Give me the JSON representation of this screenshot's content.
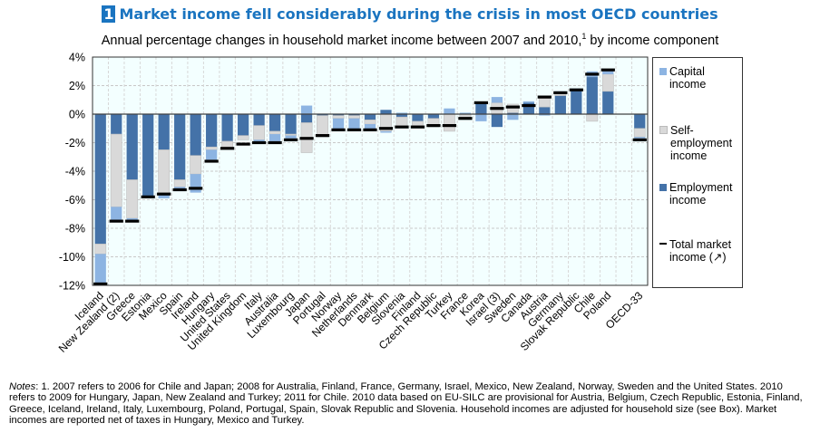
{
  "title": {
    "number": "1",
    "text": "Market income fell considerably during the crisis in most OECD countries"
  },
  "subtitle": {
    "text": "Annual percentage changes in household market income between 2007 and 2010,",
    "footnote_ref": "1",
    "suffix": " by income component"
  },
  "legend": {
    "items": [
      {
        "key": "capital",
        "label": "Capital income",
        "color": "#8db4e2"
      },
      {
        "key": "self",
        "label": "Self-employment income",
        "color": "#d9d9d9"
      },
      {
        "key": "employment",
        "label": "Employment income",
        "color": "#4472a8"
      },
      {
        "key": "total",
        "label": "Total market income (↗)",
        "color": "#000000"
      }
    ]
  },
  "notes": {
    "label": "Notes",
    "text": ": 1. 2007 refers to 2006 for Chile and Japan; 2008 for Australia, Finland, France, Germany, Israel, Mexico, New Zealand, Norway, Sweden and the United States. 2010 refers to 2009 for Hungary, Japan, New Zealand and Turkey; 2011 for Chile. 2010 data based on EU-SILC are provisional for Austria, Belgium, Czech Republic, Estonia, Finland, Greece, Iceland, Ireland, Italy, Luxembourg, Poland, Portugal, Spain, Slovak Republic and Slovenia. Household incomes are adjusted for household size (see Box). Market incomes are reported net of taxes in Hungary, Mexico and Turkey."
  },
  "chart_data": {
    "type": "bar",
    "stacked": true,
    "title": "Market income fell considerably during the crisis in most OECD countries",
    "subtitle": "Annual percentage changes in household market income between 2007 and 2010, by income component",
    "xlabel": "",
    "ylabel": "",
    "ylim": [
      -12,
      4
    ],
    "yticks": [
      4,
      2,
      0,
      -2,
      -4,
      -6,
      -8,
      -10,
      -12
    ],
    "ytick_labels": [
      "4%",
      "2%",
      "0%",
      "-2%",
      "-4%",
      "-6%",
      "-8%",
      "-10%",
      "-12%"
    ],
    "grid": true,
    "legend_position": "right",
    "categories": [
      "Iceland",
      "New Zealand (2)",
      "Greece",
      "Estonia",
      "Mexico",
      "Spain",
      "Ireland",
      "Hungary",
      "United States",
      "United Kingdom",
      "Italy",
      "Australia",
      "Luxembourg",
      "Japan",
      "Portugal",
      "Norway",
      "Netherlands",
      "Denmark",
      "Belgium",
      "Slovenia",
      "Finland",
      "Czech Republic",
      "Turkey",
      "France",
      "Korea",
      "Israel (3)",
      "Sweden",
      "Canada",
      "Austria",
      "Germany",
      "Slovak Republic",
      "Chile",
      "Poland",
      "",
      "OECD-33"
    ],
    "series": [
      {
        "name": "Employment income",
        "values": [
          -9.1,
          -1.4,
          -4.6,
          -5.9,
          -2.5,
          -4.6,
          -2.9,
          -2.3,
          -1.9,
          -1.5,
          -0.8,
          -1.2,
          -1.4,
          -0.6,
          -0.1,
          -0.1,
          -0.1,
          -0.4,
          0.3,
          -0.2,
          -0.5,
          -0.3,
          0.0,
          0.0,
          0.8,
          -0.9,
          0.1,
          0.8,
          0.5,
          1.3,
          1.7,
          2.6,
          1.6,
          null,
          -1.0
        ]
      },
      {
        "name": "Self-employment income",
        "values": [
          -0.7,
          -5.1,
          -2.7,
          0.0,
          -3.1,
          -0.5,
          -1.3,
          -0.2,
          -0.4,
          -0.3,
          -1.0,
          -0.2,
          -0.1,
          -2.1,
          -1.5,
          -0.2,
          -0.2,
          -0.3,
          -1.2,
          -0.7,
          -0.3,
          -0.6,
          -1.2,
          -0.2,
          0.0,
          0.8,
          0.6,
          0.0,
          0.6,
          0.2,
          0.0,
          -0.5,
          1.2,
          null,
          -0.6
        ]
      },
      {
        "name": "Capital income",
        "values": [
          -2.1,
          -1.0,
          -0.2,
          0.0,
          -0.3,
          -0.3,
          -1.3,
          -0.7,
          0.0,
          0.0,
          -0.2,
          -0.5,
          -0.2,
          0.6,
          0.0,
          -0.8,
          -0.8,
          -0.4,
          -0.1,
          0.1,
          0.0,
          0.0,
          0.4,
          0.1,
          -0.5,
          0.4,
          -0.4,
          0.1,
          -0.1,
          0.1,
          0.1,
          0.4,
          0.3,
          null,
          -0.1
        ]
      },
      {
        "name": "Total market income",
        "values": [
          -11.9,
          -7.5,
          -7.5,
          -5.8,
          -5.6,
          -5.3,
          -5.2,
          -3.3,
          -2.4,
          -2.1,
          -2.0,
          -2.0,
          -1.8,
          -1.7,
          -1.5,
          -1.1,
          -1.1,
          -1.1,
          -1.0,
          -0.9,
          -0.9,
          -0.8,
          -0.8,
          -0.3,
          0.8,
          0.4,
          0.5,
          0.6,
          1.2,
          1.5,
          1.7,
          2.8,
          3.1,
          null,
          -1.8
        ]
      }
    ]
  }
}
